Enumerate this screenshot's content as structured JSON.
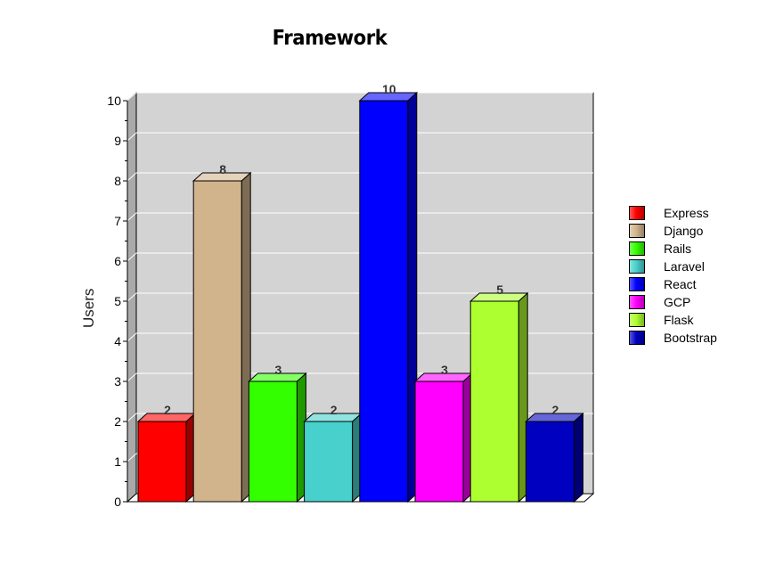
{
  "chart_data": {
    "type": "bar",
    "title": "Framework",
    "xlabel": "",
    "ylabel": "Users",
    "ylim": [
      0,
      10
    ],
    "yticks": [
      0,
      1,
      2,
      3,
      4,
      5,
      6,
      7,
      8,
      9,
      10
    ],
    "grid": true,
    "legend_position": "right",
    "categories": [
      "Express",
      "Django",
      "Rails",
      "Laravel",
      "React",
      "GCP",
      "Flask",
      "Bootstrap"
    ],
    "values": [
      2,
      8,
      3,
      2,
      10,
      3,
      5,
      2
    ],
    "colors": [
      "#ff0000",
      "#d2b48c",
      "#33ff00",
      "#48d1cc",
      "#0000ff",
      "#ff00ff",
      "#adff2f",
      "#0000c0"
    ],
    "data_labels": [
      "2",
      "8",
      "3",
      "2",
      "10",
      "3",
      "5",
      "2"
    ],
    "plot_background": "#d3d3d3"
  }
}
